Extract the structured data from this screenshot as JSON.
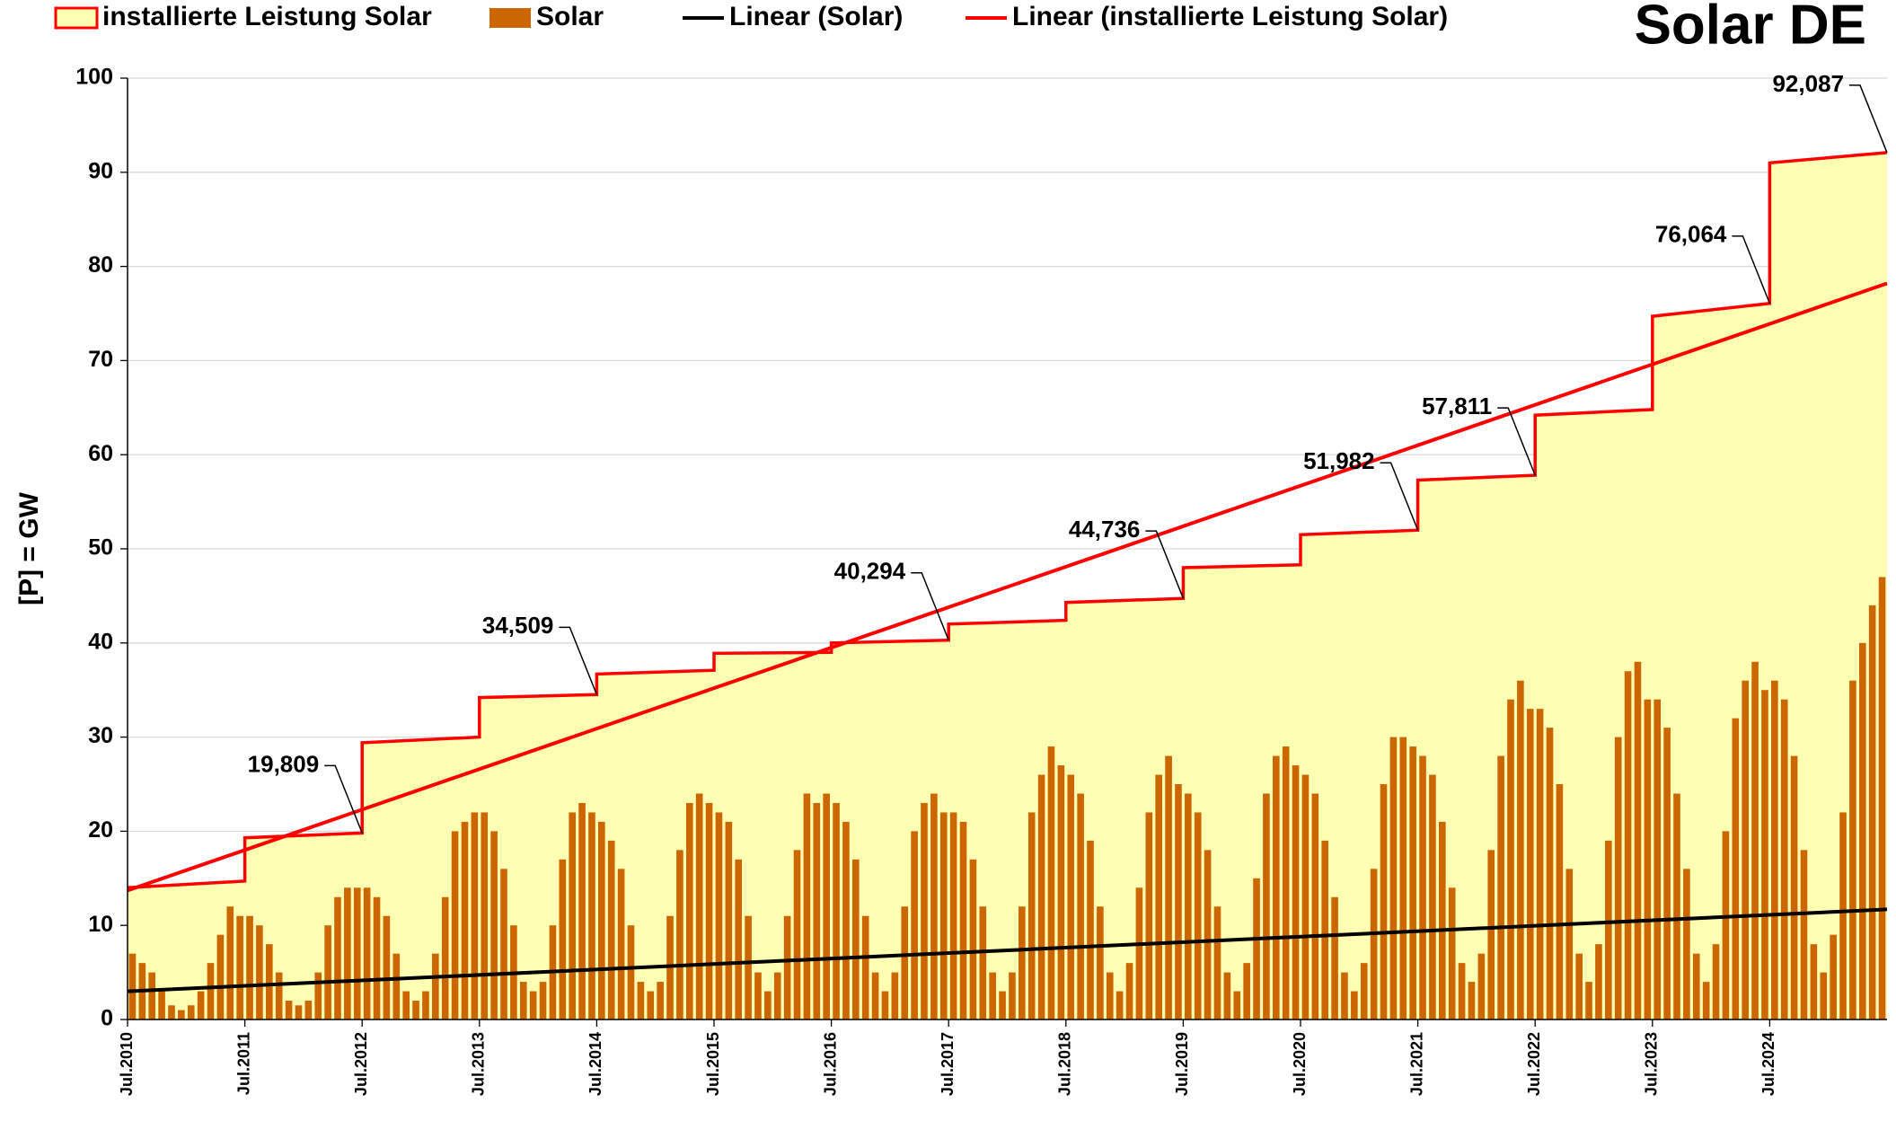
{
  "chart_data": {
    "type": "combo",
    "title": "Solar   DE",
    "y_label": "[P]  =  GW",
    "ylim": [
      0,
      100
    ],
    "yticks": [
      0,
      10,
      20,
      30,
      40,
      50,
      60,
      70,
      80,
      90,
      100
    ],
    "grid": true,
    "xlim": [
      "2010-07",
      "2025-07"
    ],
    "xticks": [
      {
        "value": "2010-07",
        "label": "Jul.2010"
      },
      {
        "value": "2011-07",
        "label": "Jul.2011"
      },
      {
        "value": "2012-07",
        "label": "Jul.2012"
      },
      {
        "value": "2013-07",
        "label": "Jul.2013"
      },
      {
        "value": "2014-07",
        "label": "Jul.2014"
      },
      {
        "value": "2015-07",
        "label": "Jul.2015"
      },
      {
        "value": "2016-07",
        "label": "Jul.2016"
      },
      {
        "value": "2017-07",
        "label": "Jul.2017"
      },
      {
        "value": "2018-07",
        "label": "Jul.2018"
      },
      {
        "value": "2019-07",
        "label": "Jul.2019"
      },
      {
        "value": "2020-07",
        "label": "Jul.2020"
      },
      {
        "value": "2021-07",
        "label": "Jul.2021"
      },
      {
        "value": "2022-07",
        "label": "Jul.2022"
      },
      {
        "value": "2023-07",
        "label": "Jul.2023"
      },
      {
        "value": "2024-07",
        "label": "Jul.2024"
      }
    ],
    "series": [
      {
        "name": "installierte Leistung Solar",
        "type": "area",
        "color": "#ff0000",
        "fill": "#ffffb3",
        "x": [
          "2010-07",
          "2011-07",
          "2011-07",
          "2012-07",
          "2012-07",
          "2013-07",
          "2013-07",
          "2014-07",
          "2014-07",
          "2015-07",
          "2015-07",
          "2016-07",
          "2016-07",
          "2017-07",
          "2017-07",
          "2018-07",
          "2018-07",
          "2019-07",
          "2019-07",
          "2020-07",
          "2020-07",
          "2021-07",
          "2021-07",
          "2022-07",
          "2022-07",
          "2023-07",
          "2023-07",
          "2024-07",
          "2024-07",
          "2025-07"
        ],
        "values": [
          14.0,
          14.7,
          19.3,
          19.809,
          29.4,
          30.0,
          34.2,
          34.509,
          36.7,
          37.1,
          38.9,
          39.0,
          40.0,
          40.294,
          42.0,
          42.4,
          44.3,
          44.736,
          48.0,
          48.3,
          51.5,
          51.982,
          57.3,
          57.811,
          64.2,
          64.8,
          74.7,
          76.064,
          91.0,
          92.087
        ]
      },
      {
        "name": "Solar",
        "type": "bar",
        "color": "#cc6600",
        "x": [
          "2010-07",
          "2010-08",
          "2010-09",
          "2010-10",
          "2010-11",
          "2010-12",
          "2011-01",
          "2011-02",
          "2011-03",
          "2011-04",
          "2011-05",
          "2011-06",
          "2011-07",
          "2011-08",
          "2011-09",
          "2011-10",
          "2011-11",
          "2011-12",
          "2012-01",
          "2012-02",
          "2012-03",
          "2012-04",
          "2012-05",
          "2012-06",
          "2012-07",
          "2012-08",
          "2012-09",
          "2012-10",
          "2012-11",
          "2012-12",
          "2013-01",
          "2013-02",
          "2013-03",
          "2013-04",
          "2013-05",
          "2013-06",
          "2013-07",
          "2013-08",
          "2013-09",
          "2013-10",
          "2013-11",
          "2013-12",
          "2014-01",
          "2014-02",
          "2014-03",
          "2014-04",
          "2014-05",
          "2014-06",
          "2014-07",
          "2014-08",
          "2014-09",
          "2014-10",
          "2014-11",
          "2014-12",
          "2015-01",
          "2015-02",
          "2015-03",
          "2015-04",
          "2015-05",
          "2015-06",
          "2015-07",
          "2015-08",
          "2015-09",
          "2015-10",
          "2015-11",
          "2015-12",
          "2016-01",
          "2016-02",
          "2016-03",
          "2016-04",
          "2016-05",
          "2016-06",
          "2016-07",
          "2016-08",
          "2016-09",
          "2016-10",
          "2016-11",
          "2016-12",
          "2017-01",
          "2017-02",
          "2017-03",
          "2017-04",
          "2017-05",
          "2017-06",
          "2017-07",
          "2017-08",
          "2017-09",
          "2017-10",
          "2017-11",
          "2017-12",
          "2018-01",
          "2018-02",
          "2018-03",
          "2018-04",
          "2018-05",
          "2018-06",
          "2018-07",
          "2018-08",
          "2018-09",
          "2018-10",
          "2018-11",
          "2018-12",
          "2019-01",
          "2019-02",
          "2019-03",
          "2019-04",
          "2019-05",
          "2019-06",
          "2019-07",
          "2019-08",
          "2019-09",
          "2019-10",
          "2019-11",
          "2019-12",
          "2020-01",
          "2020-02",
          "2020-03",
          "2020-04",
          "2020-05",
          "2020-06",
          "2020-07",
          "2020-08",
          "2020-09",
          "2020-10",
          "2020-11",
          "2020-12",
          "2021-01",
          "2021-02",
          "2021-03",
          "2021-04",
          "2021-05",
          "2021-06",
          "2021-07",
          "2021-08",
          "2021-09",
          "2021-10",
          "2021-11",
          "2021-12",
          "2022-01",
          "2022-02",
          "2022-03",
          "2022-04",
          "2022-05",
          "2022-06",
          "2022-07",
          "2022-08",
          "2022-09",
          "2022-10",
          "2022-11",
          "2022-12",
          "2023-01",
          "2023-02",
          "2023-03",
          "2023-04",
          "2023-05",
          "2023-06",
          "2023-07",
          "2023-08",
          "2023-09",
          "2023-10",
          "2023-11",
          "2023-12",
          "2024-01",
          "2024-02",
          "2024-03",
          "2024-04",
          "2024-05",
          "2024-06",
          "2024-07",
          "2024-08",
          "2024-09",
          "2024-10",
          "2024-11",
          "2024-12",
          "2025-01",
          "2025-02",
          "2025-03",
          "2025-04",
          "2025-05",
          "2025-06"
        ],
        "values": [
          7,
          6,
          5,
          3,
          1.5,
          1,
          1.5,
          3,
          6,
          9,
          12,
          11,
          11,
          10,
          8,
          5,
          2,
          1.5,
          2,
          5,
          10,
          13,
          14,
          14,
          14,
          13,
          11,
          7,
          3,
          2,
          3,
          7,
          13,
          20,
          21,
          22,
          22,
          20,
          16,
          10,
          4,
          3,
          4,
          10,
          17,
          22,
          23,
          22,
          21,
          19,
          16,
          10,
          4,
          3,
          4,
          11,
          18,
          23,
          24,
          23,
          22,
          21,
          17,
          11,
          5,
          3,
          5,
          11,
          18,
          24,
          23,
          24,
          23,
          21,
          17,
          11,
          5,
          3,
          5,
          12,
          20,
          23,
          24,
          22,
          22,
          21,
          17,
          12,
          5,
          3,
          5,
          12,
          22,
          26,
          29,
          27,
          26,
          24,
          19,
          12,
          5,
          3,
          6,
          14,
          22,
          26,
          28,
          25,
          24,
          22,
          18,
          12,
          5,
          3,
          6,
          15,
          24,
          28,
          29,
          27,
          26,
          24,
          19,
          13,
          5,
          3,
          6,
          16,
          25,
          30,
          30,
          29,
          28,
          26,
          21,
          14,
          6,
          4,
          7,
          18,
          28,
          34,
          36,
          33,
          33,
          31,
          25,
          16,
          7,
          4,
          8,
          19,
          30,
          37,
          38,
          34,
          34,
          31,
          24,
          16,
          7,
          4,
          8,
          20,
          32,
          36,
          38,
          35,
          36,
          34,
          28,
          18,
          8,
          5,
          9,
          22,
          36,
          40,
          44,
          47
        ]
      },
      {
        "name": "Linear (Solar)",
        "type": "line",
        "color": "#000000",
        "x": [
          "2010-07",
          "2025-07"
        ],
        "values": [
          3.0,
          11.7
        ]
      },
      {
        "name": "Linear (installierte Leistung Solar)",
        "type": "line",
        "color": "#ff0000",
        "x": [
          "2010-07",
          "2025-07"
        ],
        "values": [
          13.7,
          78.2
        ]
      }
    ],
    "annotations": [
      {
        "x": "2012-07",
        "value": 19.809,
        "label": "19,809"
      },
      {
        "x": "2014-07",
        "value": 34.509,
        "label": "34,509"
      },
      {
        "x": "2017-07",
        "value": 40.294,
        "label": "40,294"
      },
      {
        "x": "2019-07",
        "value": 44.736,
        "label": "44,736"
      },
      {
        "x": "2021-07",
        "value": 51.982,
        "label": "51,982"
      },
      {
        "x": "2022-07",
        "value": 57.811,
        "label": "57,811"
      },
      {
        "x": "2024-07",
        "value": 76.064,
        "label": "76,064"
      },
      {
        "x": "2025-07",
        "value": 92.087,
        "label": "92,087"
      }
    ]
  }
}
